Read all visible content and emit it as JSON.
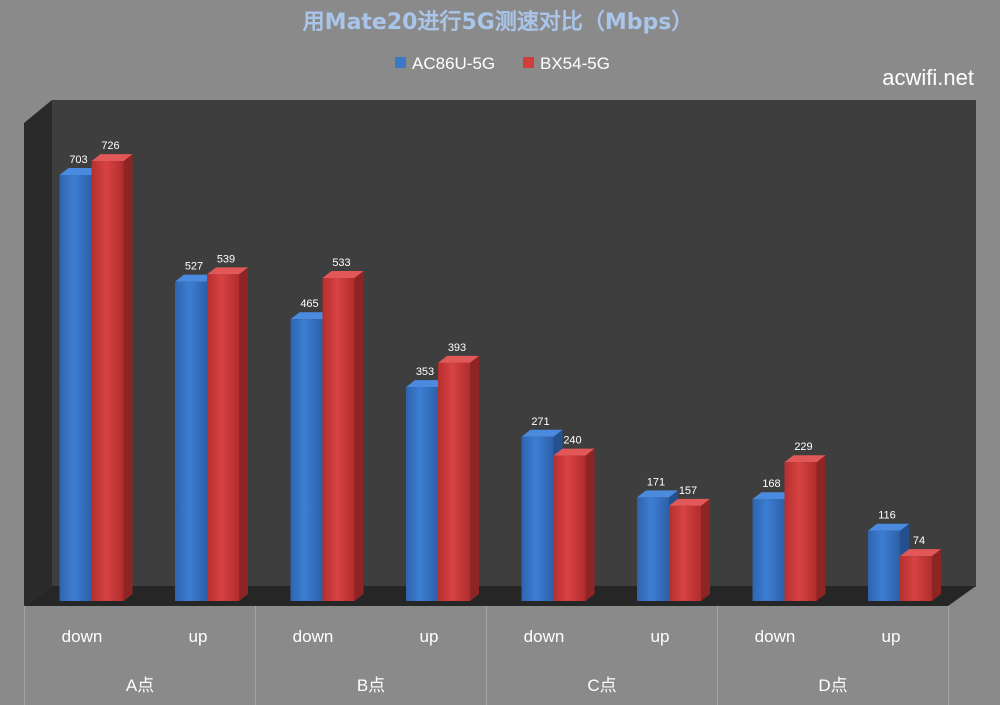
{
  "watermark": "acwifi.net",
  "colors": {
    "background": "#8a8a8a",
    "plot_back": "#3e3e3e",
    "plot_side": "#2a2a2a",
    "floor": "#262626",
    "title": "#a9c5ea",
    "axis_text": "#ffffff"
  },
  "chart_data": {
    "type": "bar",
    "title": "用Mate20进行5G测速对比（Mbps）",
    "legend_position": "top",
    "grid": false,
    "three_d": true,
    "ylim": [
      0,
      800
    ],
    "categories": [
      "down",
      "up",
      "down",
      "up",
      "down",
      "up",
      "down",
      "up"
    ],
    "groups": [
      "A点",
      "B点",
      "C点",
      "D点"
    ],
    "series": [
      {
        "name": "AC86U-5G",
        "color": "#3a78c8",
        "values": [
          703,
          527,
          465,
          353,
          271,
          171,
          168,
          116
        ]
      },
      {
        "name": "BX54-5G",
        "color": "#d13c3c",
        "values": [
          726,
          539,
          533,
          393,
          240,
          157,
          229,
          74
        ]
      }
    ]
  }
}
